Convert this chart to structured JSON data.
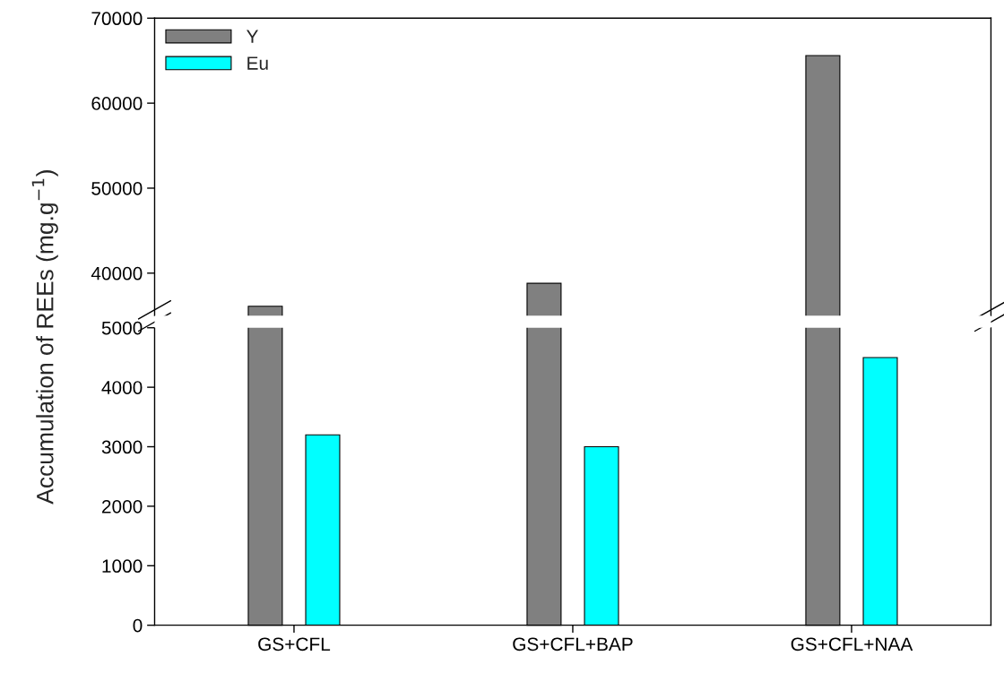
{
  "chart_data": [
    {
      "type": "bar",
      "categories": [
        null,
        null,
        null
      ],
      "series": [
        {
          "name": "Y",
          "color": "#808080",
          "values": [
            36100,
            38800,
            65600
          ]
        }
      ],
      "ylim": [
        35000,
        70000
      ],
      "yticks": [
        40000,
        50000,
        60000,
        70000
      ],
      "tick_labels": "y",
      "legend": "top left",
      "grid": false
    },
    {
      "type": "bar",
      "categories": [
        "GS+CFL",
        "GS+CFL+BAP",
        "GS+CFL+NAA"
      ],
      "series": [
        {
          "name": "Eu",
          "color": "#00ffff",
          "values": [
            3200,
            3000,
            4500
          ]
        }
      ],
      "ylabel": "Accumulation of REEs (mg.g$^{−1}$)",
      "ylim": [
        0,
        5000
      ],
      "yticks": [
        0,
        1000,
        2000,
        3000,
        4000,
        5000
      ],
      "grid": false
    }
  ]
}
